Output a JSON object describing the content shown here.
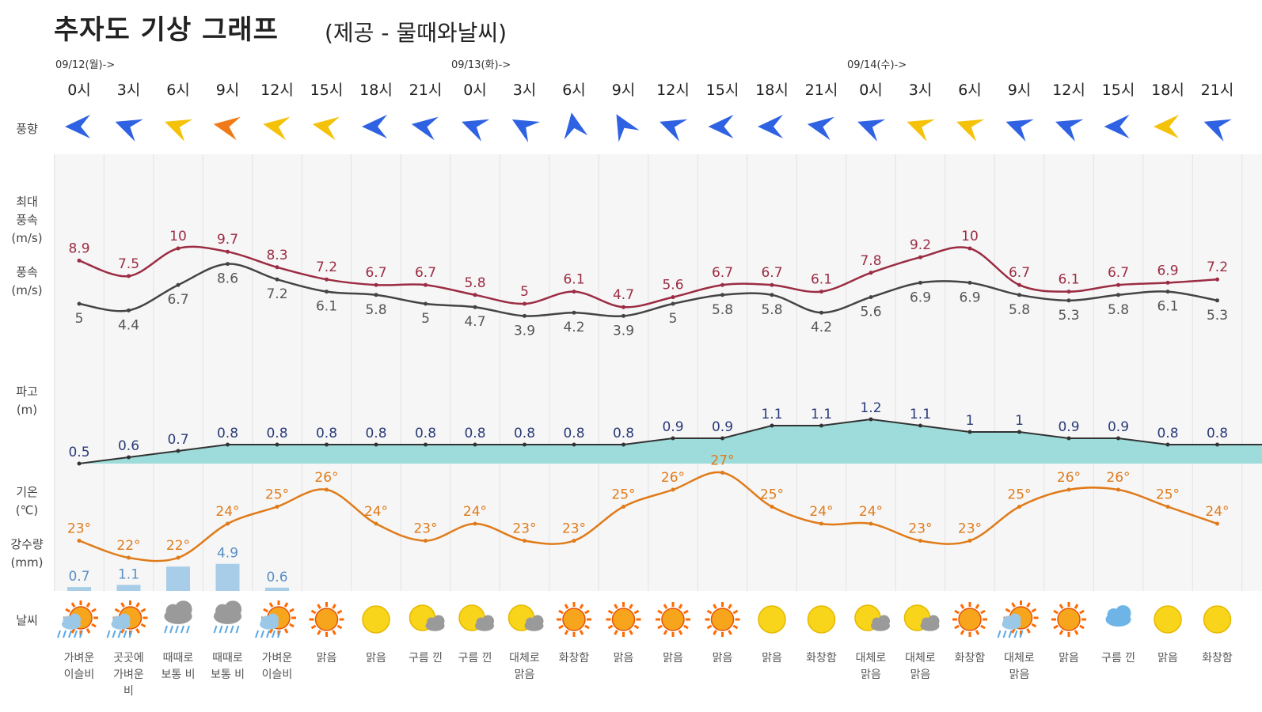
{
  "header": {
    "title": "추자도 기상 그래프",
    "subtitle": "(제공 - 물때와날씨)"
  },
  "row_labels": {
    "wind_dir": "풍향",
    "max_wind": [
      "최대",
      "풍속",
      "(m/s)"
    ],
    "wind": [
      "풍속",
      "(m/s)"
    ],
    "wave": [
      "파고",
      "(m)"
    ],
    "temp": [
      "기온",
      "(℃)"
    ],
    "precip": [
      "강수량",
      "(mm)"
    ],
    "weather": "날씨"
  },
  "colors": {
    "max_wind_line": "#9b2c43",
    "wind_line": "#444444",
    "wave_fill": "#9edbdb",
    "wave_line": "#333333",
    "temp_line": "#e07b1a",
    "precip_bar": "#a8cde8",
    "precip_text": "#5a8fc4",
    "wave_text": "#2a3b78",
    "band_bg": "#f6f6f6"
  },
  "chart_data": {
    "type": "line",
    "dates": [
      {
        "label": "09/12(월)->",
        "at": 0
      },
      {
        "label": "09/13(화)->",
        "at": 8
      },
      {
        "label": "09/14(수)->",
        "at": 16
      }
    ],
    "categories": [
      "0시",
      "3시",
      "6시",
      "9시",
      "12시",
      "15시",
      "18시",
      "21시",
      "0시",
      "3시",
      "6시",
      "9시",
      "12시",
      "15시",
      "18시",
      "21시",
      "0시",
      "3시",
      "6시",
      "9시",
      "12시",
      "15시",
      "18시",
      "21시"
    ],
    "wind_direction": {
      "levels": [
        "blue",
        "blue",
        "yellow",
        "orange",
        "yellow",
        "yellow",
        "blue",
        "blue",
        "blue",
        "blue",
        "blue",
        "blue",
        "blue",
        "blue",
        "blue",
        "blue",
        "blue",
        "yellow",
        "yellow",
        "blue",
        "blue",
        "blue",
        "yellow",
        "blue"
      ],
      "rotation_deg": [
        0,
        20,
        20,
        10,
        10,
        10,
        0,
        10,
        20,
        30,
        80,
        60,
        20,
        0,
        0,
        10,
        20,
        20,
        20,
        20,
        20,
        0,
        0,
        20
      ]
    },
    "series": [
      {
        "key": "max_wind",
        "values": [
          8.9,
          7.5,
          10,
          9.7,
          8.3,
          7.2,
          6.7,
          6.7,
          5.8,
          5,
          6.1,
          4.7,
          5.6,
          6.7,
          6.7,
          6.1,
          7.8,
          9.2,
          10,
          6.7,
          6.1,
          6.7,
          6.9,
          7.2
        ],
        "labels": [
          "8.9",
          "7.5",
          "10",
          "9.7",
          "8.3",
          "7.2",
          "6.7",
          "6.7",
          "5.8",
          "5",
          "6.1",
          "4.7",
          "5.6",
          "6.7",
          "6.7",
          "6.1",
          "7.8",
          "9.2",
          "10",
          "6.7",
          "6.1",
          "6.7",
          "6.9",
          "7.2"
        ]
      },
      {
        "key": "wind",
        "values": [
          5,
          4.4,
          6.7,
          8.6,
          7.2,
          6.1,
          5.8,
          5,
          4.7,
          3.9,
          4.2,
          3.9,
          5,
          5.8,
          5.8,
          4.2,
          5.6,
          6.9,
          6.9,
          5.8,
          5.3,
          5.8,
          6.1,
          5.3
        ],
        "labels": [
          "5",
          "4.4",
          "6.7",
          "8.6",
          "7.2",
          "6.1",
          "5.8",
          "5",
          "4.7",
          "3.9",
          "4.2",
          "3.9",
          "5",
          "5.8",
          "5.8",
          "4.2",
          "5.6",
          "6.9",
          "6.9",
          "5.8",
          "5.3",
          "5.8",
          "6.1",
          "5.3"
        ]
      },
      {
        "key": "wave",
        "values": [
          0.5,
          0.6,
          0.7,
          0.8,
          0.8,
          0.8,
          0.8,
          0.8,
          0.8,
          0.8,
          0.8,
          0.8,
          0.9,
          0.9,
          1.1,
          1.1,
          1.2,
          1.1,
          1,
          1,
          0.9,
          0.9,
          0.8,
          0.8
        ],
        "labels": [
          "0.5",
          "0.6",
          "0.7",
          "0.8",
          "0.8",
          "0.8",
          "0.8",
          "0.8",
          "0.8",
          "0.8",
          "0.8",
          "0.8",
          "0.9",
          "0.9",
          "1.1",
          "1.1",
          "1.2",
          "1.1",
          "1",
          "1",
          "0.9",
          "0.9",
          "0.8",
          "0.8"
        ]
      },
      {
        "key": "temp",
        "values": [
          23,
          22,
          22,
          24,
          25,
          26,
          24,
          23,
          24,
          23,
          23,
          25,
          26,
          27,
          25,
          24,
          24,
          23,
          23,
          25,
          26,
          26,
          25,
          24
        ],
        "labels": [
          "23°",
          "22°",
          "22°",
          "24°",
          "25°",
          "26°",
          "24°",
          "23°",
          "24°",
          "23°",
          "23°",
          "25°",
          "26°",
          "27°",
          "25°",
          "24°",
          "24°",
          "23°",
          "23°",
          "25°",
          "26°",
          "26°",
          "25°",
          "24°"
        ]
      }
    ],
    "precipitation": {
      "values": [
        0.7,
        1.1,
        4.4,
        4.9,
        0.6,
        null,
        null,
        null,
        null,
        null,
        null,
        null,
        null,
        null,
        null,
        null,
        null,
        null,
        null,
        null,
        null,
        null,
        null,
        null
      ],
      "labels": [
        "0.7",
        "1.1",
        "",
        "4.9",
        "0.6",
        "",
        "",
        "",
        "",
        "",
        "",
        "",
        "",
        "",
        "",
        "",
        "",
        "",
        "",
        "",
        "",
        "",
        "",
        ""
      ]
    },
    "weather": {
      "icons": [
        "sun-cloud-rain-icon",
        "sun-cloud-rain-icon",
        "cloud-rain-icon",
        "cloud-rain-icon",
        "sun-cloud-rain-icon",
        "hot-sun-icon",
        "sun-icon",
        "sun-cloud-icon",
        "sun-cloud-icon",
        "sun-cloud-icon",
        "hot-sun-icon",
        "hot-sun-icon",
        "hot-sun-icon",
        "hot-sun-icon",
        "sun-icon",
        "sun-icon",
        "sun-cloud-icon",
        "sun-cloud-icon",
        "hot-sun-icon",
        "sun-cloud-rain-icon",
        "hot-sun-icon",
        "cloud-icon",
        "sun-icon",
        "sun-icon"
      ],
      "labels": [
        [
          "가벼운",
          "이슬비"
        ],
        [
          "곳곳에",
          "가벼운",
          "비"
        ],
        [
          "때때로",
          "보통 비"
        ],
        [
          "때때로",
          "보통 비"
        ],
        [
          "가벼운",
          "이슬비"
        ],
        [
          "맑음"
        ],
        [
          "맑음"
        ],
        [
          "구름 낀"
        ],
        [
          "구름 낀"
        ],
        [
          "대체로",
          "맑음"
        ],
        [
          "화창함"
        ],
        [
          "맑음"
        ],
        [
          "맑음"
        ],
        [
          "맑음"
        ],
        [
          "맑음"
        ],
        [
          "화창함"
        ],
        [
          "대체로",
          "맑음"
        ],
        [
          "대체로",
          "맑음"
        ],
        [
          "화창함"
        ],
        [
          "대체로",
          "맑음"
        ],
        [
          "맑음"
        ],
        [
          "구름 낀"
        ],
        [
          "맑음"
        ],
        [
          "화창함"
        ]
      ]
    }
  }
}
